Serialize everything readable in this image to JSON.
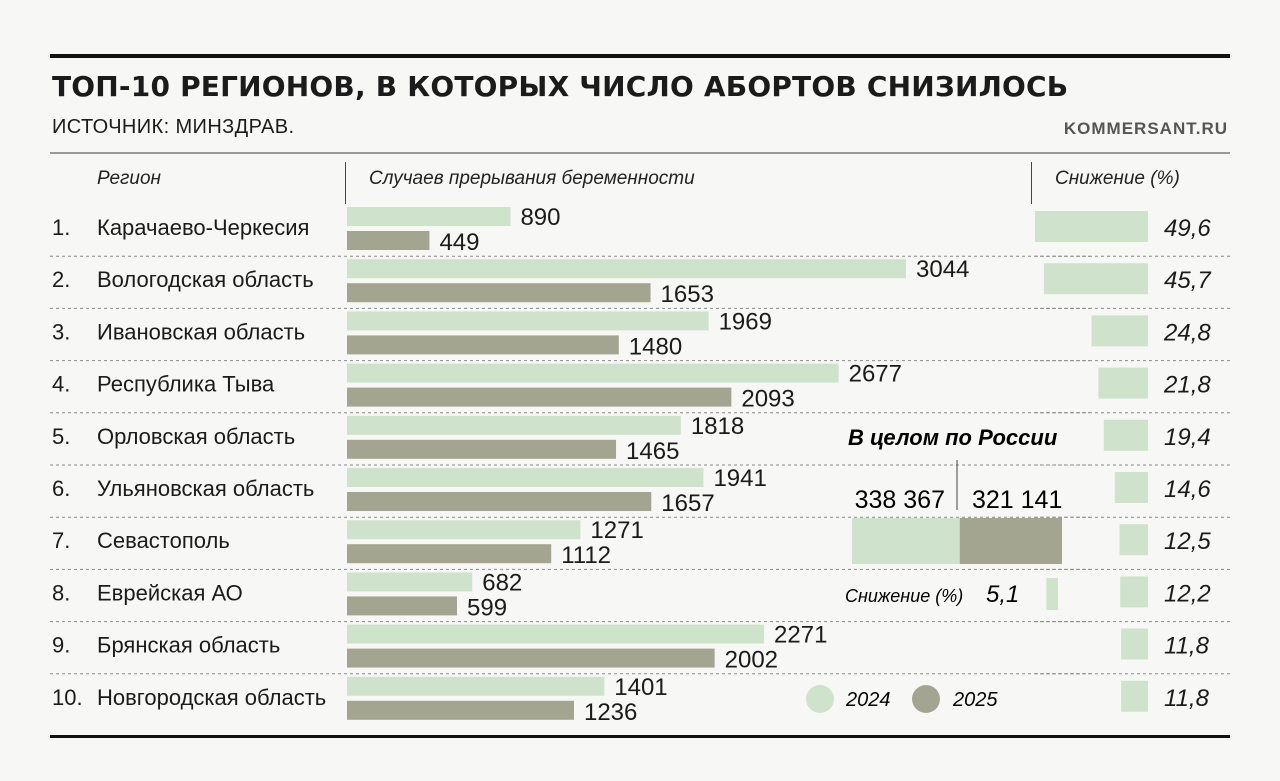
{
  "header": {
    "title": "ТОП-10 РЕГИОНОВ, В КОТОРЫХ ЧИСЛО АБОРТОВ СНИЗИЛОСЬ",
    "source": "ИСТОЧНИК: МИНЗДРАВ.",
    "brand": "KOMMERSANT.RU"
  },
  "columns": {
    "region": "Регион",
    "cases": "Случаев прерывания беременности",
    "decline": "Снижение (%)"
  },
  "colors": {
    "y2024": "#cfe3cc",
    "y2025": "#a4a590",
    "text": "#1b1b1b"
  },
  "chart_data": {
    "type": "bar",
    "orientation": "horizontal",
    "categories": [
      "Карачаево-Черкесия",
      "Вологодская область",
      "Ивановская область",
      "Республика Тыва",
      "Орловская область",
      "Ульяновская область",
      "Севастополь",
      "Еврейская АО",
      "Брянская область",
      "Новгородская область"
    ],
    "ranks": [
      "1.",
      "2.",
      "3.",
      "4.",
      "5.",
      "6.",
      "7.",
      "8.",
      "9.",
      "10."
    ],
    "series": [
      {
        "name": "2024",
        "values": [
          890,
          3044,
          1969,
          2677,
          1818,
          1941,
          1271,
          682,
          2271,
          1401
        ]
      },
      {
        "name": "2025",
        "values": [
          449,
          1653,
          1480,
          2093,
          1465,
          1657,
          1112,
          599,
          2002,
          1236
        ]
      }
    ],
    "decline_pct": [
      49.6,
      45.7,
      24.8,
      21.8,
      19.4,
      14.6,
      12.5,
      12.2,
      11.8,
      11.8
    ],
    "decline_labels": [
      "49,6",
      "45,7",
      "24,8",
      "21,8",
      "19,4",
      "14,6",
      "12,5",
      "12,2",
      "11,8",
      "11,8"
    ],
    "russia_total": {
      "title": "В целом по России",
      "values": [
        338367,
        321141
      ],
      "labels": [
        "338 367",
        "321 141"
      ],
      "decline_label": "Снижение (%)",
      "decline_pct": 5.1,
      "decline_text": "5,1"
    },
    "legend": [
      "2024",
      "2025"
    ]
  }
}
